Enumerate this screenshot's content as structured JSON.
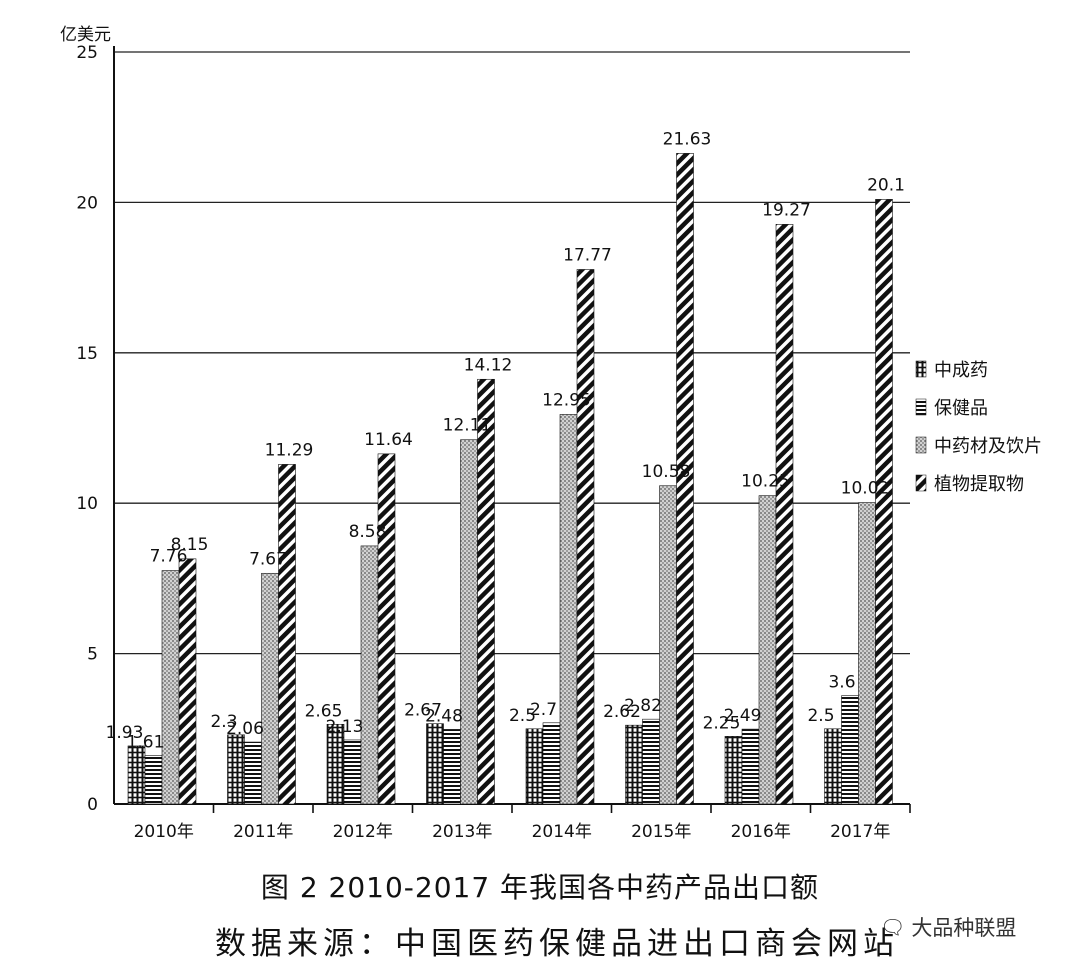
{
  "chart_data": {
    "type": "bar",
    "unit_label": "亿美元",
    "categories": [
      "2010年",
      "2011年",
      "2012年",
      "2013年",
      "2014年",
      "2015年",
      "2016年",
      "2017年"
    ],
    "series": [
      {
        "name": "中成药",
        "pattern": "grid",
        "values": [
          1.93,
          2.3,
          2.65,
          2.67,
          2.5,
          2.62,
          2.25,
          2.5
        ]
      },
      {
        "name": "保健品",
        "pattern": "hlines",
        "values": [
          1.61,
          2.06,
          2.13,
          2.48,
          2.7,
          2.82,
          2.49,
          3.6
        ]
      },
      {
        "name": "中药材及饮片",
        "pattern": "dots",
        "values": [
          7.76,
          7.67,
          8.58,
          12.11,
          12.95,
          10.58,
          10.25,
          10.02
        ]
      },
      {
        "name": "植物提取物",
        "pattern": "diagonal",
        "values": [
          8.15,
          11.29,
          11.64,
          14.12,
          17.77,
          21.63,
          19.27,
          20.1
        ]
      }
    ],
    "ylim": [
      0,
      25
    ],
    "yticks": [
      0,
      5,
      10,
      15,
      20,
      25
    ],
    "grid": true,
    "legend_position": "right",
    "caption": "图 2   2010-2017 年我国各中药产品出口额",
    "source": "数据来源：中国医药保健品进出口商会网站"
  },
  "watermark": {
    "text": "大品种联盟",
    "icon": "wechat-icon"
  }
}
